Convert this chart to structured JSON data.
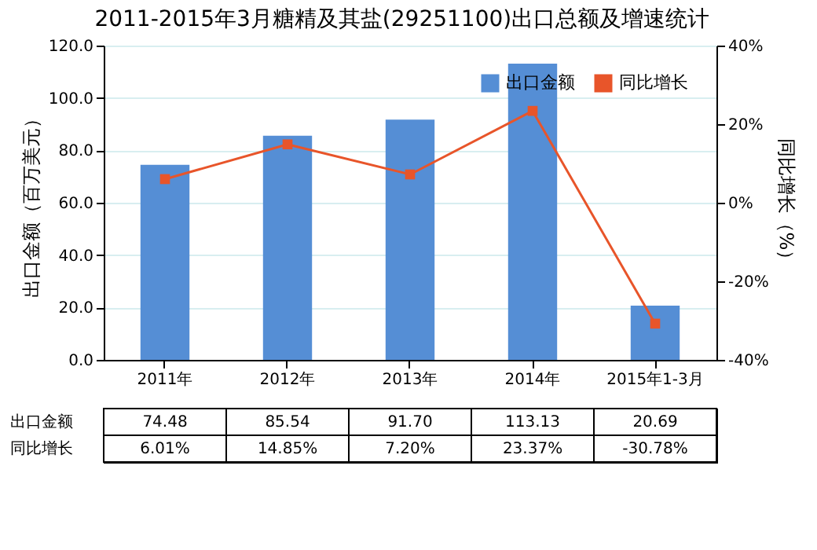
{
  "chart_data": {
    "type": "bar",
    "title": "2011-2015年3月糖精及其盐(29251100)出口总额及增速统计",
    "ylabel": "出口金额（百万美元）",
    "y2label": "同比增长（%）",
    "categories": [
      "2011年",
      "2012年",
      "2013年",
      "2014年",
      "2015年1-3月"
    ],
    "series": [
      {
        "name": "出口金额",
        "color": "#558ed5",
        "values": [
          74.48,
          85.54,
          91.7,
          113.13,
          20.69
        ],
        "value_labels": [
          "74.48",
          "85.54",
          "91.70",
          "113.13",
          "20.69"
        ]
      },
      {
        "name": "同比增长",
        "type": "line",
        "axis": "y2",
        "color": "#e8552a",
        "marker": "square",
        "line_style": "solid",
        "values": [
          6.01,
          14.85,
          7.2,
          23.37,
          -30.78
        ],
        "value_labels": [
          "6.01%",
          "14.85%",
          "7.20%",
          "23.37%",
          "-30.78%"
        ]
      }
    ],
    "ylim": [
      0,
      120
    ],
    "yticks": [
      {
        "value": 0,
        "label": "0.0"
      },
      {
        "value": 20,
        "label": "20.0"
      },
      {
        "value": 40,
        "label": "40.0"
      },
      {
        "value": 60,
        "label": "60.0"
      },
      {
        "value": 80,
        "label": "80.0"
      },
      {
        "value": 100,
        "label": "100.0"
      },
      {
        "value": 120,
        "label": "120.0"
      }
    ],
    "y2lim": [
      -40,
      40
    ],
    "y2ticks": [
      {
        "value": -40,
        "label": "-40%"
      },
      {
        "value": -20,
        "label": "-20%"
      },
      {
        "value": 0,
        "label": "0%"
      },
      {
        "value": 20,
        "label": "20%"
      },
      {
        "value": 40,
        "label": "40%"
      }
    ],
    "grid": "y",
    "legend": "top right",
    "data_labels": true
  }
}
